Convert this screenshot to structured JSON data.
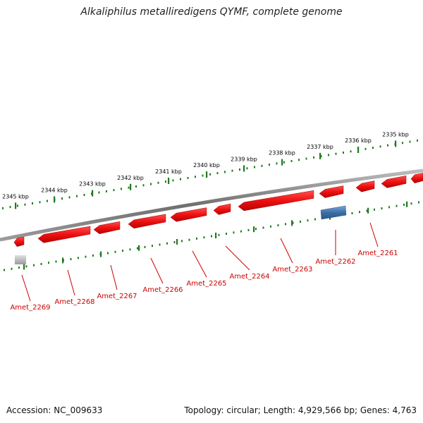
{
  "title": "Alkaliphilus metalliredigens QYMF, complete genome",
  "accession_text": "Accession: NC_009633",
  "topology_text": "Topology: circular; Length: 4,929,566 bp; Genes: 4,763",
  "colors": {
    "backbone": "#7a7a7a",
    "ruler": "#1f7a1f",
    "gene_forward": "#ee1111",
    "gene_reverse": "#ee1111",
    "gene_blue": "#3a6fa8",
    "gene_grey": "#b8b8b8",
    "label": "#cc0000"
  },
  "kbp_ticks": [
    {
      "label": "2345 kbp"
    },
    {
      "label": "2344 kbp"
    },
    {
      "label": "2343 kbp"
    },
    {
      "label": "2342 kbp"
    },
    {
      "label": "2341 kbp"
    },
    {
      "label": "2340 kbp"
    },
    {
      "label": "2339 kbp"
    },
    {
      "label": "2338 kbp"
    },
    {
      "label": "2337 kbp"
    },
    {
      "label": "2336 kbp"
    },
    {
      "label": "2335 kbp"
    }
  ],
  "genes": [
    {
      "label": "Amet_2269"
    },
    {
      "label": "Amet_2268"
    },
    {
      "label": "Amet_2267"
    },
    {
      "label": "Amet_2266"
    },
    {
      "label": "Amet_2265"
    },
    {
      "label": "Amet_2264"
    },
    {
      "label": "Amet_2263"
    },
    {
      "label": "Amet_2262"
    },
    {
      "label": "Amet_2261"
    }
  ]
}
